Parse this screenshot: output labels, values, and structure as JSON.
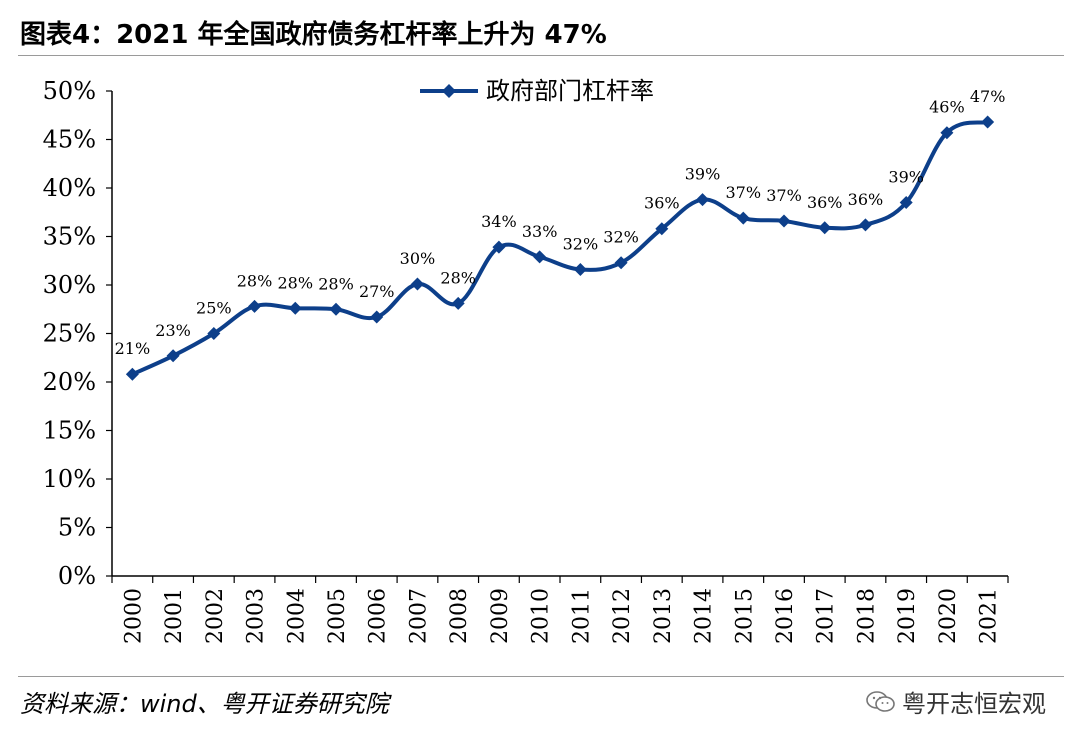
{
  "header": {
    "title": "图表4：2021 年全国政府债务杠杆率上升为 47%"
  },
  "footer": {
    "source": "资料来源：wind、粤开证券研究院",
    "watermark": "粤开志恒宏观"
  },
  "colors": {
    "series": "#0d3f8a",
    "axis": "#000000"
  },
  "chart_data": {
    "type": "line",
    "title": "图表4：2021 年全国政府债务杠杆率上升为 47%",
    "xlabel": "",
    "ylabel": "",
    "ylim": [
      0,
      50
    ],
    "y_ticks": [
      "0%",
      "5%",
      "10%",
      "15%",
      "20%",
      "25%",
      "30%",
      "35%",
      "40%",
      "45%",
      "50%"
    ],
    "grid": false,
    "legend_position": "top-center",
    "categories": [
      "2000",
      "2001",
      "2002",
      "2003",
      "2004",
      "2005",
      "2006",
      "2007",
      "2008",
      "2009",
      "2010",
      "2011",
      "2012",
      "2013",
      "2014",
      "2015",
      "2016",
      "2017",
      "2018",
      "2019",
      "2020",
      "2021"
    ],
    "series": [
      {
        "name": "政府部门杠杆率",
        "values": [
          20.8,
          22.7,
          25.0,
          27.8,
          27.6,
          27.5,
          26.7,
          30.1,
          28.1,
          33.9,
          32.9,
          31.6,
          32.3,
          35.8,
          38.8,
          36.9,
          36.6,
          35.9,
          36.2,
          38.5,
          45.7,
          46.8
        ],
        "labels": [
          "21%",
          "23%",
          "25%",
          "28%",
          "28%",
          "28%",
          "27%",
          "30%",
          "28%",
          "34%",
          "33%",
          "32%",
          "32%",
          "36%",
          "39%",
          "37%",
          "37%",
          "36%",
          "36%",
          "39%",
          "46%",
          "47%"
        ]
      }
    ]
  }
}
